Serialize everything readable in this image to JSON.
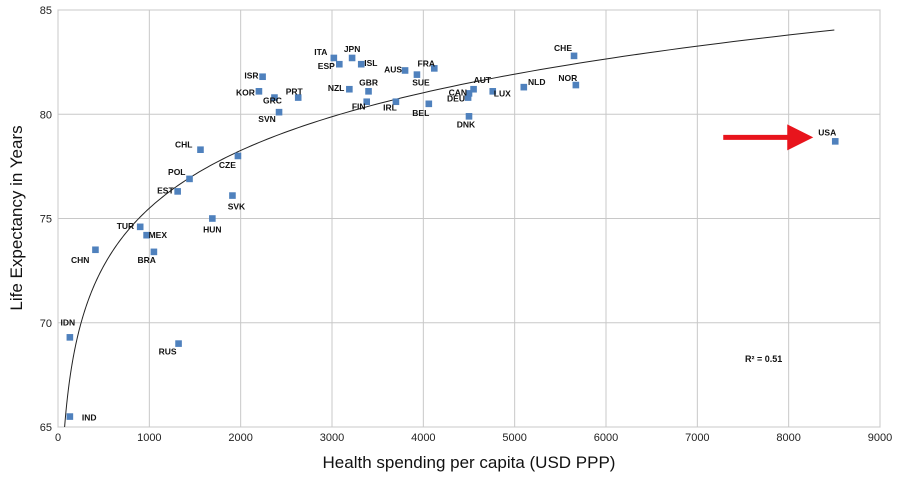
{
  "chart_data": {
    "type": "scatter",
    "title": "",
    "xlabel": "Health spending per capita (USD PPP)",
    "ylabel": "Life Expectancy in Years",
    "xlim": [
      0,
      9000
    ],
    "ylim": [
      65,
      85
    ],
    "xticks": [
      0,
      1000,
      2000,
      3000,
      4000,
      5000,
      6000,
      7000,
      8000,
      9000
    ],
    "yticks": [
      65,
      70,
      75,
      80,
      85
    ],
    "grid": true,
    "legend": "none",
    "colors": {
      "point": "#4F81BD",
      "trendline": "#222222",
      "grid": "#c8c8c8",
      "arrow": "#e8141c"
    },
    "trendline": {
      "type": "logarithmic",
      "r2_text": "R² = 0.51"
    },
    "highlight": {
      "label": "USA",
      "marker": "arrow-right"
    },
    "points": [
      {
        "label": "IND",
        "x": 130,
        "y": 65.5
      },
      {
        "label": "IDN",
        "x": 130,
        "y": 69.3
      },
      {
        "label": "CHN",
        "x": 410,
        "y": 73.5
      },
      {
        "label": "RUS",
        "x": 1320,
        "y": 69.0
      },
      {
        "label": "TUR",
        "x": 900,
        "y": 74.6
      },
      {
        "label": "MEX",
        "x": 970,
        "y": 74.2
      },
      {
        "label": "BRA",
        "x": 1050,
        "y": 73.4
      },
      {
        "label": "EST",
        "x": 1310,
        "y": 76.3
      },
      {
        "label": "POL",
        "x": 1440,
        "y": 76.9
      },
      {
        "label": "CHL",
        "x": 1560,
        "y": 78.3
      },
      {
        "label": "HUN",
        "x": 1690,
        "y": 75.0
      },
      {
        "label": "SVK",
        "x": 1910,
        "y": 76.1
      },
      {
        "label": "CZE",
        "x": 1970,
        "y": 78.0
      },
      {
        "label": "KOR",
        "x": 2200,
        "y": 81.1
      },
      {
        "label": "ISR",
        "x": 2240,
        "y": 81.8
      },
      {
        "label": "GRC",
        "x": 2370,
        "y": 80.8
      },
      {
        "label": "SVN",
        "x": 2420,
        "y": 80.1
      },
      {
        "label": "PRT",
        "x": 2630,
        "y": 80.8
      },
      {
        "label": "ITA",
        "x": 3020,
        "y": 82.7
      },
      {
        "label": "ESP",
        "x": 3080,
        "y": 82.4
      },
      {
        "label": "NZL",
        "x": 3190,
        "y": 81.2
      },
      {
        "label": "JPN",
        "x": 3220,
        "y": 82.7
      },
      {
        "label": "ISL",
        "x": 3320,
        "y": 82.4
      },
      {
        "label": "FIN",
        "x": 3380,
        "y": 80.6
      },
      {
        "label": "GBR",
        "x": 3400,
        "y": 81.1
      },
      {
        "label": "IRL",
        "x": 3700,
        "y": 80.6
      },
      {
        "label": "AUS",
        "x": 3800,
        "y": 82.1
      },
      {
        "label": "SUE",
        "x": 3930,
        "y": 81.9
      },
      {
        "label": "BEL",
        "x": 4060,
        "y": 80.5
      },
      {
        "label": "FRA",
        "x": 4120,
        "y": 82.2
      },
      {
        "label": "CAN",
        "x": 4490,
        "y": 80.8
      },
      {
        "label": "DEU",
        "x": 4500,
        "y": 81.0
      },
      {
        "label": "DNK",
        "x": 4500,
        "y": 79.9
      },
      {
        "label": "AUT",
        "x": 4550,
        "y": 81.2
      },
      {
        "label": "LUX",
        "x": 4760,
        "y": 81.1
      },
      {
        "label": "NLD",
        "x": 5100,
        "y": 81.3
      },
      {
        "label": "CHE",
        "x": 5650,
        "y": 82.8
      },
      {
        "label": "NOR",
        "x": 5670,
        "y": 81.4
      },
      {
        "label": "USA",
        "x": 8510,
        "y": 78.7
      }
    ]
  }
}
